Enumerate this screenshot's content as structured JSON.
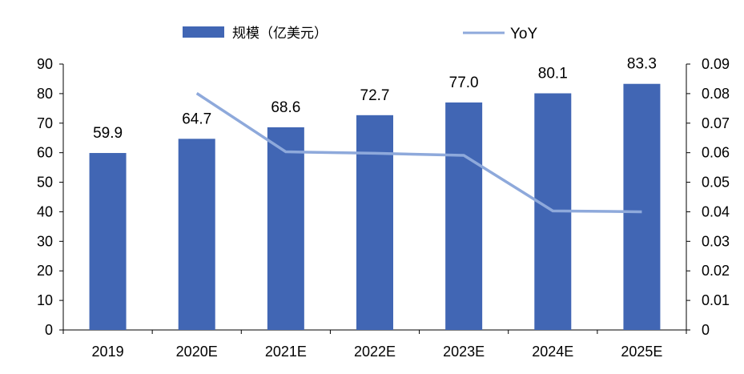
{
  "chart_data": {
    "type": "bar",
    "title": "",
    "xlabel": "",
    "ylabel": "",
    "categories": [
      "2019",
      "2020E",
      "2021E",
      "2022E",
      "2023E",
      "2024E",
      "2025E"
    ],
    "series": [
      {
        "name": "规模（亿美元）",
        "type": "bar",
        "axis": "left",
        "values": [
          59.9,
          64.7,
          68.6,
          72.7,
          77.0,
          80.1,
          83.3
        ],
        "data_labels": [
          "59.9",
          "64.7",
          "68.6",
          "72.7",
          "77.0",
          "80.1",
          "83.3"
        ],
        "color": "#4166B4"
      },
      {
        "name": "YoY",
        "type": "line",
        "axis": "right",
        "values": [
          null,
          0.0801,
          0.0603,
          0.0598,
          0.0591,
          0.0403,
          0.04
        ],
        "color": "#8EA9DB"
      }
    ],
    "ylim": [
      0,
      90
    ],
    "y_ticks": [
      "0",
      "10",
      "20",
      "30",
      "40",
      "50",
      "60",
      "70",
      "80",
      "90"
    ],
    "y2lim": [
      0,
      0.09
    ],
    "y2_ticks": [
      "0",
      "0.01",
      "0.02",
      "0.03",
      "0.04",
      "0.05",
      "0.06",
      "0.07",
      "0.08",
      "0.09"
    ],
    "grid": false,
    "legend_position": "top"
  }
}
